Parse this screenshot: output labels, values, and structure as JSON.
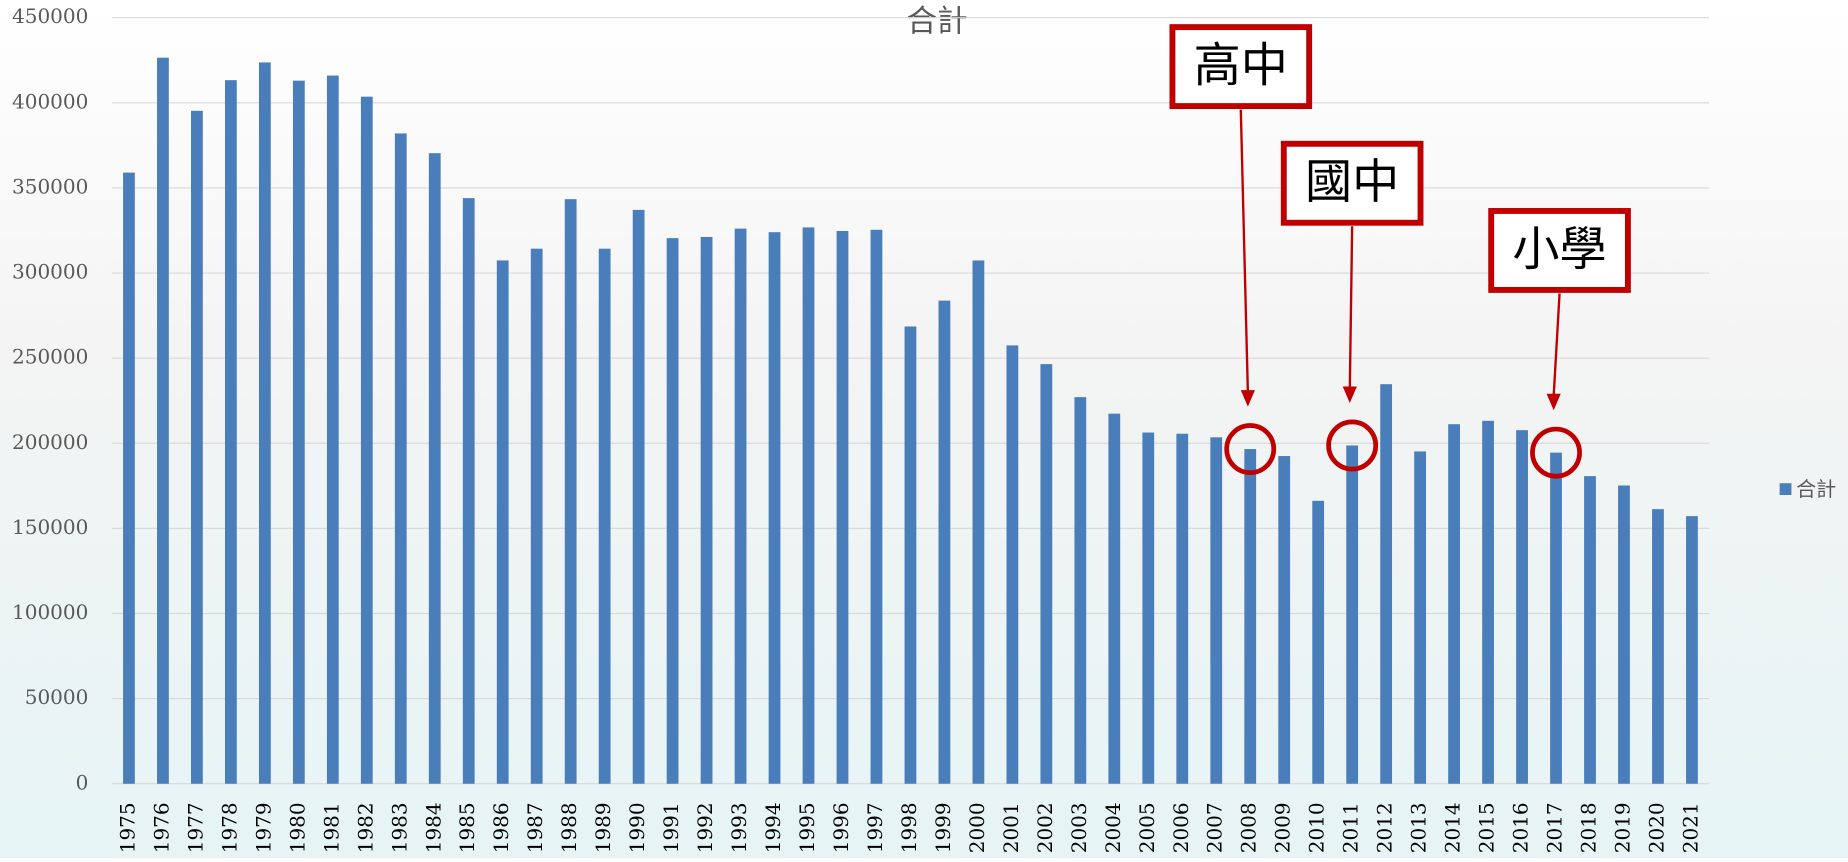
{
  "chart_data": {
    "type": "bar",
    "title": "合計",
    "categories": [
      "1975",
      "1976",
      "1977",
      "1978",
      "1979",
      "1980",
      "1981",
      "1982",
      "1983",
      "1984",
      "1985",
      "1986",
      "1987",
      "1988",
      "1989",
      "1990",
      "1991",
      "1992",
      "1993",
      "1994",
      "1995",
      "1996",
      "1997",
      "1998",
      "1999",
      "2000",
      "2001",
      "2002",
      "2003",
      "2004",
      "2005",
      "2006",
      "2007",
      "2008",
      "2009",
      "2010",
      "2011",
      "2012",
      "2013",
      "2014",
      "2015",
      "2016",
      "2017",
      "2018",
      "2019",
      "2020",
      "2021"
    ],
    "series": [
      {
        "name": "合計",
        "color": "#4a7ebb",
        "values": [
          359000,
          426500,
          395300,
          413300,
          423700,
          413000,
          416000,
          403600,
          382000,
          370400,
          344000,
          307400,
          314300,
          343400,
          314300,
          337100,
          320500,
          321200,
          326100,
          324000,
          326800,
          324700,
          325400,
          268600,
          283800,
          307400,
          257500,
          246500,
          227100,
          217400,
          206300,
          205600,
          203500,
          196600,
          192500,
          166200,
          198700,
          234700,
          195200,
          211200,
          213200,
          207700,
          194500,
          180700,
          175200,
          161300,
          157200
        ]
      }
    ],
    "ylim": [
      0,
      450000
    ],
    "yticks": [
      0,
      50000,
      100000,
      150000,
      200000,
      250000,
      300000,
      350000,
      400000,
      450000
    ],
    "grid": true,
    "legend": "right",
    "annotations": [
      {
        "text": "高中",
        "category": "2008"
      },
      {
        "text": "國中",
        "category": "2011"
      },
      {
        "text": "小學",
        "category": "2017"
      }
    ]
  }
}
